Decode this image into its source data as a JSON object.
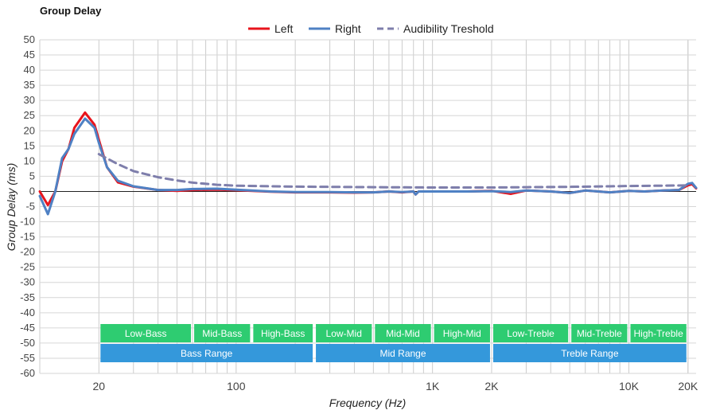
{
  "chart_data": {
    "type": "line",
    "title": "Group Delay",
    "xlabel": "Frequency (Hz)",
    "ylabel": "Group Delay (ms)",
    "x_scale": "log",
    "xlim": [
      10,
      22000
    ],
    "ylim": [
      -60,
      50
    ],
    "y_ticks": [
      50,
      45,
      40,
      35,
      30,
      25,
      20,
      15,
      10,
      5,
      0,
      -5,
      -10,
      -15,
      -20,
      -25,
      -30,
      -35,
      -40,
      -45,
      -50,
      -55,
      -60
    ],
    "x_tick_labels": [
      {
        "value": 20,
        "label": "20"
      },
      {
        "value": 100,
        "label": "100"
      },
      {
        "value": 1000,
        "label": "1K"
      },
      {
        "value": 2000,
        "label": "2K"
      },
      {
        "value": 10000,
        "label": "10K"
      },
      {
        "value": 20000,
        "label": "20K"
      }
    ],
    "grid": true,
    "legend_position": "top-center",
    "series": [
      {
        "name": "Left",
        "color": "#e8141c",
        "dash": false,
        "x": [
          10,
          11,
          12,
          13,
          14,
          15,
          17,
          19,
          20,
          22,
          25,
          30,
          40,
          50,
          60,
          80,
          100,
          150,
          200,
          300,
          400,
          500,
          600,
          700,
          800,
          820,
          850,
          900,
          1000,
          1500,
          2000,
          2500,
          3000,
          4000,
          5000,
          6000,
          7000,
          8000,
          10000,
          12000,
          15000,
          18000,
          20000,
          21000,
          22000
        ],
        "y": [
          0,
          -4.5,
          0,
          10,
          14,
          21,
          26,
          22,
          17,
          8,
          3,
          1.6,
          0.5,
          0.2,
          0.5,
          0.6,
          0.4,
          -0.1,
          -0.3,
          -0.3,
          -0.4,
          -0.3,
          0,
          -0.3,
          0,
          -1,
          0,
          0,
          0,
          0,
          0.2,
          -0.8,
          0.3,
          0,
          -0.5,
          0.3,
          0,
          -0.3,
          0.2,
          0,
          0.3,
          0.5,
          2,
          2.4,
          1
        ]
      },
      {
        "name": "Right",
        "color": "#4f81c4",
        "dash": false,
        "x": [
          10,
          11,
          12,
          13,
          14,
          15,
          17,
          19,
          20,
          22,
          25,
          30,
          40,
          50,
          60,
          80,
          100,
          150,
          200,
          300,
          400,
          500,
          600,
          700,
          800,
          820,
          850,
          900,
          1000,
          1500,
          2000,
          2500,
          3000,
          4000,
          5000,
          6000,
          7000,
          8000,
          10000,
          12000,
          15000,
          18000,
          20000,
          21000,
          22000
        ],
        "y": [
          -1.5,
          -7.5,
          0,
          11,
          14,
          19,
          24,
          21,
          16,
          8,
          3.5,
          1.7,
          0.5,
          0.5,
          0.8,
          0.9,
          0.6,
          0,
          -0.2,
          -0.2,
          -0.3,
          -0.3,
          0,
          -0.2,
          0,
          -1,
          0,
          0,
          0,
          0,
          0.1,
          -0.2,
          0.3,
          0,
          -0.5,
          0.3,
          0,
          -0.3,
          0.2,
          0,
          0.3,
          0.5,
          2.5,
          2.8,
          1.2
        ]
      },
      {
        "name": "Audibility Treshold",
        "color": "#7e7eab",
        "dash": true,
        "x": [
          20,
          25,
          30,
          40,
          50,
          60,
          80,
          100,
          150,
          200,
          300,
          500,
          1000,
          2000,
          3000,
          5000,
          8000,
          10000,
          15000,
          20000
        ],
        "y": [
          12.3,
          9,
          6.7,
          4.7,
          3.6,
          2.9,
          2.2,
          1.9,
          1.7,
          1.6,
          1.5,
          1.4,
          1.3,
          1.3,
          1.4,
          1.5,
          1.7,
          1.8,
          1.9,
          2
        ]
      }
    ],
    "bands": [
      {
        "label": "Low-Bass",
        "from": 20,
        "to": 60,
        "color": "#2ecc71",
        "row": 1
      },
      {
        "label": "Mid-Bass",
        "from": 60,
        "to": 120,
        "color": "#2ecc71",
        "row": 1
      },
      {
        "label": "High-Bass",
        "from": 120,
        "to": 250,
        "color": "#2ecc71",
        "row": 1
      },
      {
        "label": "Low-Mid",
        "from": 250,
        "to": 500,
        "color": "#2ecc71",
        "row": 1
      },
      {
        "label": "Mid-Mid",
        "from": 500,
        "to": 1000,
        "color": "#2ecc71",
        "row": 1
      },
      {
        "label": "High-Mid",
        "from": 1000,
        "to": 2000,
        "color": "#2ecc71",
        "row": 1
      },
      {
        "label": "Low-Treble",
        "from": 2000,
        "to": 5000,
        "color": "#2ecc71",
        "row": 1
      },
      {
        "label": "Mid-Treble",
        "from": 5000,
        "to": 10000,
        "color": "#2ecc71",
        "row": 1
      },
      {
        "label": "High-Treble",
        "from": 10000,
        "to": 20000,
        "color": "#2ecc71",
        "row": 1
      },
      {
        "label": "Bass Range",
        "from": 20,
        "to": 250,
        "color": "#3498db",
        "row": 2
      },
      {
        "label": "Mid Range",
        "from": 250,
        "to": 2000,
        "color": "#3498db",
        "row": 2
      },
      {
        "label": "Treble Range",
        "from": 2000,
        "to": 20000,
        "color": "#3498db",
        "row": 2
      }
    ]
  }
}
